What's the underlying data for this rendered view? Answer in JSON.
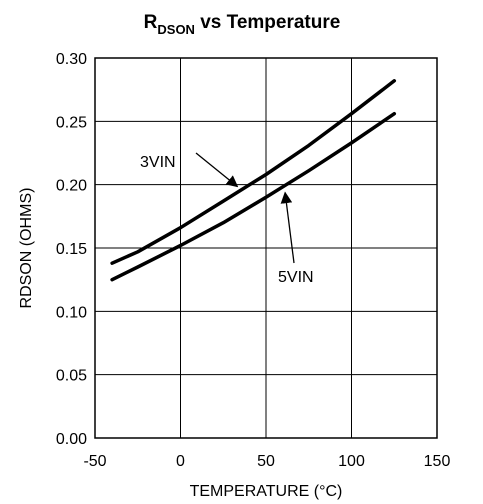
{
  "chart_data": {
    "type": "line",
    "title": {
      "main": "R",
      "subscript": "DSON",
      "rest": " vs Temperature"
    },
    "xlabel": "TEMPERATURE (°C)",
    "ylabel": "RDSON (OHMS)",
    "xlim": [
      -50,
      150
    ],
    "ylim": [
      0.0,
      0.3
    ],
    "xticks": [
      -50,
      0,
      50,
      100,
      150
    ],
    "xtick_labels": [
      "-50",
      "0",
      "50",
      "100",
      "150"
    ],
    "yticks": [
      0.0,
      0.05,
      0.1,
      0.15,
      0.2,
      0.25,
      0.3
    ],
    "ytick_labels": [
      "0.00",
      "0.05",
      "0.10",
      "0.15",
      "0.20",
      "0.25",
      "0.30"
    ],
    "grid": true,
    "series": [
      {
        "name": "3VIN",
        "x": [
          -40,
          -25,
          0,
          25,
          50,
          75,
          100,
          125
        ],
        "y": [
          0.138,
          0.147,
          0.166,
          0.187,
          0.208,
          0.231,
          0.256,
          0.282
        ]
      },
      {
        "name": "5VIN",
        "x": [
          -40,
          -25,
          0,
          25,
          50,
          75,
          100,
          125
        ],
        "y": [
          0.125,
          0.135,
          0.152,
          0.17,
          0.19,
          0.211,
          0.233,
          0.256
        ]
      }
    ],
    "annotations": [
      {
        "text": "3VIN",
        "series": "3VIN",
        "arrow_to_x": 35
      },
      {
        "text": "5VIN",
        "series": "5VIN",
        "arrow_to_x": 60
      }
    ]
  }
}
